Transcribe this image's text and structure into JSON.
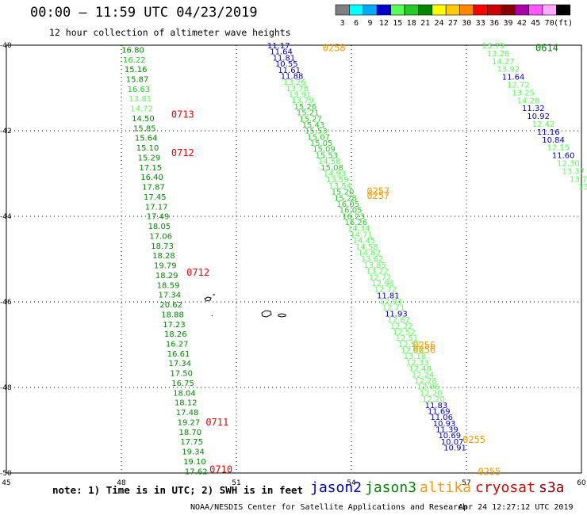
{
  "title": "00:00 – 11:59 UTC 04/23/2019",
  "subtitle": "12 hour collection of altimeter wave heights",
  "scale": {
    "labels": [
      "3",
      "6",
      "9",
      "12",
      "15",
      "18",
      "21",
      "24",
      "27",
      "30",
      "33",
      "36",
      "39",
      "42",
      "45",
      "70",
      "(ft)"
    ],
    "colors": [
      "#7f7f7f",
      "#00ffff",
      "#00aaff",
      "#0000cc",
      "#55ff55",
      "#22cc22",
      "#008800",
      "#ffff00",
      "#ffcc00",
      "#ff8800",
      "#ff0000",
      "#cc0000",
      "#880000",
      "#aa00aa",
      "#ff55ff",
      "#ffaaff",
      "#000000"
    ]
  },
  "note": "note: 1) Time is in UTC; 2) SWH is in feet",
  "satellites": [
    {
      "name": "jason2",
      "color": "#0000cc"
    },
    {
      "name": "jason3",
      "color": "#008800"
    },
    {
      "name": "altika",
      "color": "#ff9900"
    },
    {
      "name": "cryosat",
      "color": "#dd0000"
    },
    {
      "name": "s3a",
      "color": "#990000"
    }
  ],
  "footer_left": "NOAA/NESDIS Center for Satellite Applications and Research",
  "footer_right": "Apr 24 12:27:12 UTC 2019",
  "chart_data": {
    "type": "scatter",
    "xlabel": "",
    "ylabel": "",
    "xlim": [
      45,
      60
    ],
    "ylim": [
      -50,
      -40
    ],
    "x_ticks": [
      "45",
      "48",
      "51",
      "54",
      "57",
      "60"
    ],
    "y_ticks": [
      "-40",
      "-42",
      "-44",
      "-46",
      "-48",
      "-50"
    ],
    "grid": true,
    "series": [
      {
        "name": "cryosat",
        "color_key": "cryosat",
        "start": [
          48.3,
          -40.1
        ],
        "end": [
          49.95,
          -49.95
        ],
        "values": [
          "16.80",
          "16.22",
          "15.16",
          "15.87",
          "16.63",
          "13.81",
          "14.72",
          "14.50",
          "15.85",
          "15.64",
          "15.10",
          "15.29",
          "17.15",
          "16.40",
          "17.87",
          "17.45",
          "17.17",
          "17.49",
          "18.05",
          "17.06",
          "18.73",
          "18.28",
          "19.79",
          "18.29",
          "18.59",
          "17.34",
          "20.62",
          "18.88",
          "17.23",
          "18.26",
          "16.27",
          "16.61",
          "17.34",
          "17.50",
          "16.75",
          "18.04",
          "18.12",
          "17.48",
          "19.27",
          "18.70",
          "17.75",
          "19.34",
          "19.10",
          "17.62"
        ],
        "colors": [
          "#008800",
          "#22cc22",
          "#008800",
          "#008800",
          "#22cc22",
          "#55ff55",
          "#55ff55",
          "#008800",
          "#008800",
          "#008800",
          "#008800",
          "#008800",
          "#008800",
          "#008800",
          "#008800",
          "#008800",
          "#008800",
          "#008800",
          "#008800",
          "#008800",
          "#008800",
          "#008800",
          "#008800",
          "#008800",
          "#008800",
          "#008800",
          "#008800",
          "#008800",
          "#008800",
          "#008800",
          "#008800",
          "#008800",
          "#008800",
          "#008800",
          "#008800",
          "#008800",
          "#008800",
          "#008800",
          "#008800",
          "#008800",
          "#008800",
          "#008800",
          "#008800",
          "#008800"
        ],
        "time_labels": [
          {
            "text": "0713",
            "x": 49.3,
            "y": -41.6,
            "color": "#ee0000"
          },
          {
            "text": "0712",
            "x": 49.3,
            "y": -42.5,
            "color": "#ee0000"
          },
          {
            "text": "0712",
            "x": 49.7,
            "y": -45.3,
            "color": "#ee0000"
          },
          {
            "text": "0711",
            "x": 50.2,
            "y": -48.8,
            "color": "#ee0000"
          },
          {
            "text": "0710",
            "x": 50.3,
            "y": -49.9,
            "color": "#ee0000"
          }
        ]
      },
      {
        "name": "jason3-altika-track",
        "start": [
          52.1,
          -40.0
        ],
        "end": [
          56.7,
          -49.4
        ],
        "values": [
          "11.17",
          "11.64",
          "11.81",
          "10.55",
          "11.61",
          "11.88",
          "13.26",
          "13.78",
          "13.91",
          "13.79",
          "15.26",
          "15.21",
          "15.27",
          "15.43",
          "15.53",
          "15.07",
          "15.05",
          "15.09",
          "15.53",
          "14.58",
          "15.08",
          "14.93",
          "13.59",
          "13.54",
          "15.20",
          "15.28",
          "16.05",
          "16.05",
          "16.23",
          "16.26",
          "14.34",
          "14.71",
          "14.45",
          "14.58",
          "14.82",
          "13.62",
          "13.85",
          "13.22",
          "12.72",
          "12.96",
          "12.72",
          "11.81",
          "12.94",
          "12.71",
          "11.93",
          "12.62",
          "12.22",
          "12.52",
          "12.51",
          "12.52",
          "12.96",
          "13.18",
          "12.33",
          "12.48",
          "12.24",
          "12.28",
          "12.06",
          "12.20",
          "12.20",
          "11.83",
          "11.69",
          "11.06",
          "10.93",
          "11.39",
          "10.69",
          "10.07",
          "10.91"
        ],
        "colors": [
          "#0000cc",
          "#0000cc",
          "#0000cc",
          "#0000cc",
          "#0000cc",
          "#0000cc",
          "#55ff55",
          "#55ff55",
          "#55ff55",
          "#55ff55",
          "#22cc22",
          "#22cc22",
          "#22cc22",
          "#22cc22",
          "#22cc22",
          "#22cc22",
          "#22cc22",
          "#22cc22",
          "#22cc22",
          "#55ff55",
          "#22cc22",
          "#55ff55",
          "#55ff55",
          "#55ff55",
          "#22cc22",
          "#22cc22",
          "#22cc22",
          "#22cc22",
          "#22cc22",
          "#22cc22",
          "#55ff55",
          "#55ff55",
          "#55ff55",
          "#55ff55",
          "#55ff55",
          "#55ff55",
          "#55ff55",
          "#55ff55",
          "#55ff55",
          "#55ff55",
          "#55ff55",
          "#0000cc",
          "#55ff55",
          "#55ff55",
          "#0000cc",
          "#55ff55",
          "#55ff55",
          "#55ff55",
          "#55ff55",
          "#55ff55",
          "#55ff55",
          "#55ff55",
          "#55ff55",
          "#55ff55",
          "#55ff55",
          "#55ff55",
          "#55ff55",
          "#55ff55",
          "#55ff55",
          "#0000cc",
          "#0000cc",
          "#0000cc",
          "#0000cc",
          "#0000cc",
          "#0000cc",
          "#0000cc",
          "#0000cc"
        ],
        "time_labels": [
          {
            "text": "0258",
            "x": 53.25,
            "y": -40.05,
            "color": "#ff9900"
          },
          {
            "text": "0257",
            "x": 54.4,
            "y": -43.4,
            "color": "#ff9900"
          },
          {
            "text": "0257",
            "x": 54.4,
            "y": -43.5,
            "color": "#ff9900"
          },
          {
            "text": "0256",
            "x": 55.6,
            "y": -47.0,
            "color": "#ff9900"
          },
          {
            "text": "0256",
            "x": 55.6,
            "y": -47.1,
            "color": "#ff9900"
          },
          {
            "text": "0255",
            "x": 56.9,
            "y": -49.2,
            "color": "#ff9900"
          },
          {
            "text": "0255",
            "x": 57.3,
            "y": -49.95,
            "color": "#ff9900"
          }
        ]
      },
      {
        "name": "jason3-east-track",
        "start": [
          57.7,
          -40.0
        ],
        "end": [
          60.05,
          -43.3
        ],
        "values": [
          "13.79",
          "13.26",
          "14.27",
          "13.92",
          "11.64",
          "12.72",
          "13.25",
          "14.28",
          "11.32",
          "10.92",
          "12.42",
          "11.16",
          "10.84",
          "12.15",
          "11.60",
          "12.30",
          "13.37",
          "13.7",
          "13"
        ],
        "colors": [
          "#55ff55",
          "#55ff55",
          "#55ff55",
          "#55ff55",
          "#0000cc",
          "#55ff55",
          "#55ff55",
          "#55ff55",
          "#0000cc",
          "#0000cc",
          "#55ff55",
          "#0000cc",
          "#0000cc",
          "#55ff55",
          "#0000cc",
          "#55ff55",
          "#55ff55",
          "#55ff55",
          "#55ff55"
        ],
        "time_labels": [
          {
            "text": "0614",
            "x": 58.8,
            "y": -40.05,
            "color": "#008800"
          }
        ]
      }
    ]
  }
}
